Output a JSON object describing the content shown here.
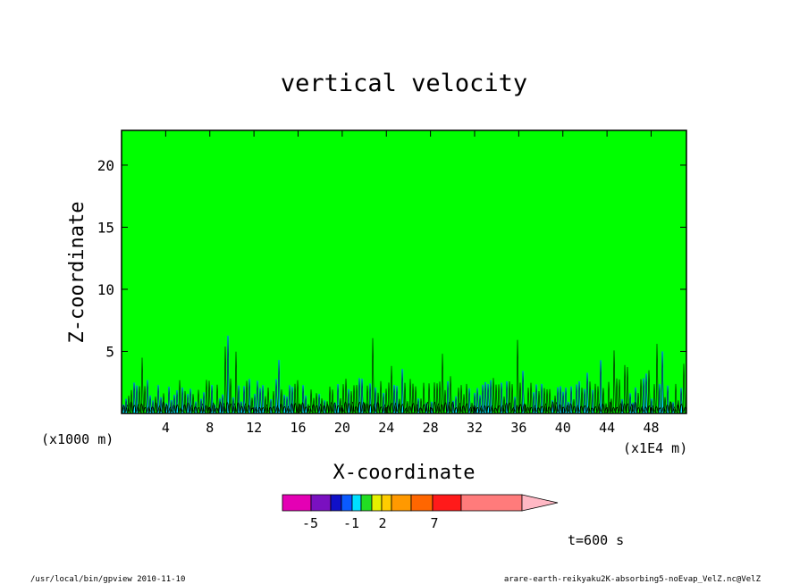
{
  "chart_data": {
    "type": "heatmap",
    "title": "vertical velocity",
    "xlabel": "X-coordinate",
    "ylabel": "Z-coordinate",
    "x_unit_left": "(x1000 m)",
    "x_unit_right": "(x1E4 m)",
    "xlim": [
      0,
      51.2
    ],
    "ylim": [
      0,
      22.8
    ],
    "x_ticks": [
      4,
      8,
      12,
      16,
      20,
      24,
      28,
      32,
      36,
      40,
      44,
      48
    ],
    "y_ticks": [
      5,
      10,
      15,
      20
    ],
    "background_level_color": "#00ff00",
    "colorbar": {
      "colors": [
        "#e400b4",
        "#7a10c0",
        "#1010c8",
        "#0a5aff",
        "#00e0ff",
        "#22dd22",
        "#e6f000",
        "#ffcc00",
        "#ff9900",
        "#ff6600",
        "#ff1a1a",
        "#ff7b7b",
        "#ffb8c4"
      ],
      "labels": [
        "-5",
        "-1",
        "2",
        "7"
      ]
    },
    "time_label": "t=600 s"
  },
  "footer": {
    "left": "/usr/local/bin/gpview  2010-11-10",
    "right": "arare-earth-reikyaku2K-absorbing5-noEvap_VelZ.nc@VelZ"
  }
}
